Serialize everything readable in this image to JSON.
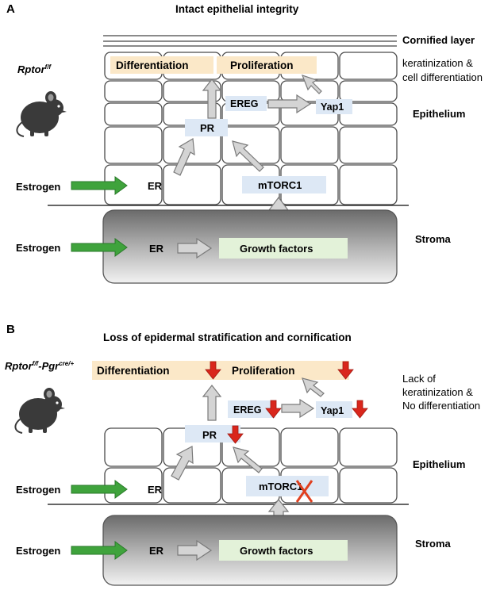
{
  "panel_a": {
    "letter": "A",
    "title": "Intact epithelial integrity",
    "genotype_base": "Rptor",
    "genotype_sup": "f/f",
    "labels": {
      "cornified_layer": "Cornified layer",
      "keratinization_1": "keratinization &",
      "keratinization_2": "cell differentiation",
      "epithelium": "Epithelium",
      "stroma": "Stroma",
      "estrogen_epi": "Estrogen",
      "estrogen_stroma": "Estrogen"
    },
    "nodes": {
      "differentiation": "Differentiation",
      "proliferation": "Proliferation",
      "ereg": "EREG",
      "yap1": "Yap1",
      "pr": "PR",
      "er_epi": "ER",
      "mtorc1": "mTORC1",
      "er_stroma": "ER",
      "growth_factors": "Growth factors"
    }
  },
  "panel_b": {
    "letter": "B",
    "title": "Loss of epidermal stratification and cornification",
    "genotype_base": "Rptor",
    "genotype_sup1": "f/f",
    "genotype_mid": "-Pgr",
    "genotype_sup2": "cre/+",
    "labels": {
      "lack_1": "Lack of",
      "lack_2": "keratinization &",
      "lack_3": "No differentiation",
      "epithelium": "Epithelium",
      "stroma": "Stroma",
      "estrogen_epi": "Estrogen",
      "estrogen_stroma": "Estrogen"
    },
    "nodes": {
      "differentiation": "Differentiation",
      "proliferation": "Proliferation",
      "ereg": "EREG",
      "yap1": "Yap1",
      "pr": "PR",
      "er_epi": "ER",
      "mtorc1": "mTORC1",
      "er_stroma": "ER",
      "growth_factors": "Growth factors"
    }
  },
  "colors": {
    "green_arrow": "#3fa33c",
    "red_arrow": "#d9261c",
    "inhibition_x": "#e0401f",
    "stroma_fill": "#8c8c8c",
    "node_blue": "#dde8f5",
    "node_peach": "#fbe8c8",
    "node_green": "#e3f2d9"
  },
  "icons": [
    "mouse-icon",
    "red-down-arrow-icon",
    "inhibition-x-icon"
  ]
}
